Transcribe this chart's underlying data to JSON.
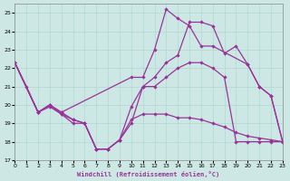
{
  "xlabel": "Windchill (Refroidissement éolien,°C)",
  "xlim": [
    0,
    23
  ],
  "ylim": [
    17,
    25.5
  ],
  "yticks": [
    17,
    18,
    19,
    20,
    21,
    22,
    23,
    24,
    25
  ],
  "xticks": [
    0,
    1,
    2,
    3,
    4,
    5,
    6,
    7,
    8,
    9,
    10,
    11,
    12,
    13,
    14,
    15,
    16,
    17,
    18,
    19,
    20,
    21,
    22,
    23
  ],
  "background_color": "#cde8e4",
  "grid_color": "#b0d8d0",
  "line_color": "#993399",
  "lines": [
    {
      "x": [
        0,
        1,
        2,
        3,
        4,
        10,
        11,
        12,
        13,
        14,
        15,
        16,
        17,
        20,
        21,
        22,
        23
      ],
      "y": [
        22.3,
        21.0,
        19.6,
        20.0,
        19.6,
        21.5,
        21.5,
        23.0,
        25.2,
        24.7,
        24.3,
        23.2,
        23.2,
        22.2,
        21.0,
        20.5,
        18.0
      ]
    },
    {
      "x": [
        0,
        2,
        3,
        4,
        5,
        6,
        7,
        8,
        9,
        10,
        11,
        12,
        13,
        14,
        15,
        16,
        17,
        18,
        19,
        20,
        21,
        22,
        23
      ],
      "y": [
        22.3,
        19.6,
        20.0,
        19.6,
        19.2,
        19.0,
        17.6,
        17.6,
        18.1,
        19.0,
        21.0,
        21.5,
        22.3,
        22.7,
        24.5,
        24.5,
        24.3,
        22.8,
        23.2,
        22.2,
        21.0,
        20.5,
        18.0
      ]
    },
    {
      "x": [
        0,
        2,
        3,
        4,
        5,
        6,
        7,
        8,
        9,
        10,
        11,
        12,
        13,
        14,
        15,
        16,
        17,
        18,
        19,
        20,
        21,
        22,
        23
      ],
      "y": [
        22.3,
        19.6,
        20.0,
        19.5,
        19.2,
        19.0,
        17.6,
        17.6,
        18.1,
        19.9,
        21.0,
        21.0,
        21.5,
        22.0,
        22.3,
        22.3,
        22.0,
        21.5,
        18.0,
        18.0,
        18.0,
        18.0,
        18.0
      ]
    },
    {
      "x": [
        0,
        2,
        3,
        4,
        5,
        6,
        7,
        8,
        9,
        10,
        11,
        12,
        13,
        14,
        15,
        16,
        17,
        18,
        19,
        20,
        21,
        22,
        23
      ],
      "y": [
        22.3,
        19.6,
        19.9,
        19.5,
        19.0,
        19.0,
        17.6,
        17.6,
        18.1,
        19.2,
        19.5,
        19.5,
        19.5,
        19.3,
        19.3,
        19.2,
        19.0,
        18.8,
        18.5,
        18.3,
        18.2,
        18.1,
        18.0
      ]
    }
  ]
}
